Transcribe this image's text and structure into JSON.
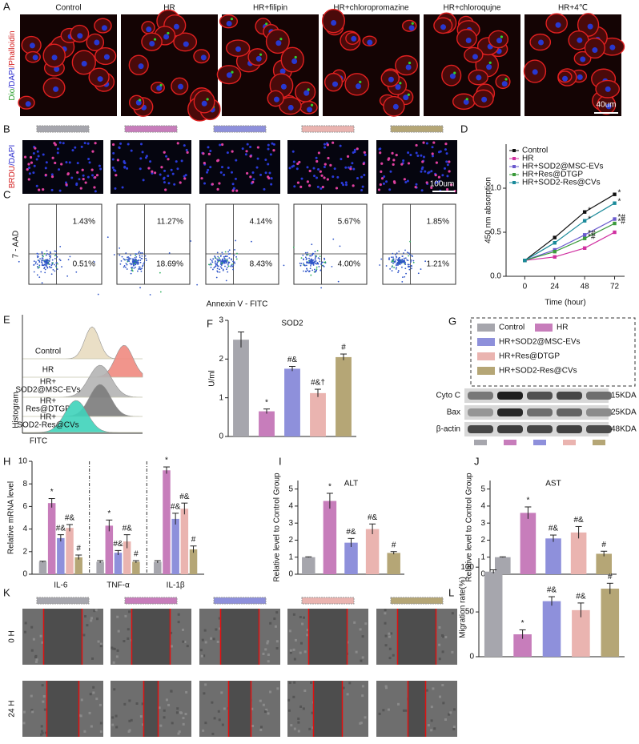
{
  "figure": {
    "A": {
      "label": "A",
      "columns": [
        "Control",
        "HR",
        "HR+filipin",
        "HR+chloropromazine",
        "HR+chloroqujne",
        "HR+4℃"
      ],
      "side_label": [
        {
          "text": "Dio",
          "color": "#2a9d2a"
        },
        {
          "text": "/DAPI",
          "color": "#2a2acd"
        },
        {
          "text": "/Phalloidin",
          "color": "#d42020"
        }
      ],
      "scale_bar": "40um"
    },
    "B": {
      "label": "B",
      "side_label": [
        {
          "text": "BRDU",
          "color": "#d42020"
        },
        {
          "text": "/DAPI",
          "color": "#2a2acd"
        }
      ],
      "scale_bar": "100um"
    },
    "C": {
      "label": "C",
      "quadrants": [
        [
          "1.43%",
          "0.51%"
        ],
        [
          "11.27%",
          "18.69%"
        ],
        [
          "4.14%",
          "8.43%"
        ],
        [
          "5.67%",
          "4.00%"
        ],
        [
          "1.85%",
          "1.21%"
        ]
      ],
      "y_label": "7 - AAD",
      "x_label": "Annexin V - FITC"
    },
    "E": {
      "label": "E",
      "tracks": [
        {
          "name": [
            "Control"
          ],
          "color": "#e8dcc0"
        },
        {
          "name": [
            "HR"
          ],
          "color": "#f08a80"
        },
        {
          "name": [
            "HR+",
            "SOD2@MSC-EVs"
          ],
          "color": "#b4b4b4"
        },
        {
          "name": [
            "HR+",
            "Res@DTGP"
          ],
          "color": "#7c7c7c"
        },
        {
          "name": [
            "HR+",
            "SOD2-Res@CVs"
          ],
          "color": "#3fd3bb"
        }
      ],
      "y_label": "Histogram",
      "x_label": "FITC"
    },
    "G": {
      "label": "G",
      "legend": [
        "Control",
        "HR",
        "HR+SOD2@MSC-EVs",
        "HR+Res@DTGP",
        "HR+SOD2-Res@CVs"
      ],
      "bands": [
        [
          "Cyto C",
          "15KDA"
        ],
        [
          "Bax",
          "25KDA"
        ],
        [
          "β-actin",
          "48KDA"
        ]
      ]
    },
    "K": {
      "label": "K",
      "rows": [
        "0 H",
        "24 H"
      ]
    }
  },
  "group_colors": [
    "#a6a6ad",
    "#c77dbb",
    "#8e90db",
    "#eab4b0",
    "#b5a676"
  ],
  "chart_data": [
    {
      "type": "line",
      "label": "D",
      "y_label": "450 nm absorption",
      "x_label": "Time (hour)",
      "x": [
        0,
        24,
        48,
        72
      ],
      "xlim": [
        -15,
        80
      ],
      "xticks": [
        0,
        24,
        48,
        72
      ],
      "ylim": [
        0,
        1.5
      ],
      "yticks": [
        {
          "value": 0,
          "label": "0.0"
        },
        {
          "value": 0.5,
          "label": "0.5"
        },
        {
          "value": 1,
          "label": "1.0"
        }
      ],
      "legend": "upper left",
      "series": [
        {
          "name": "Control",
          "color": "#111111",
          "values": [
            0.18,
            0.44,
            0.73,
            0.93
          ],
          "annotations": [
            null,
            null,
            "*",
            "*"
          ]
        },
        {
          "name": "HR",
          "color": "#d02fa0",
          "values": [
            0.18,
            0.22,
            0.32,
            0.5
          ],
          "annotations": [
            null,
            null,
            null,
            null
          ]
        },
        {
          "name": "HR+SOD2@MSC-EVs",
          "color": "#6a5acd",
          "values": [
            0.18,
            0.3,
            0.47,
            0.65
          ],
          "annotations": [
            null,
            null,
            "*#",
            "*#"
          ]
        },
        {
          "name": "HR+Res@DTGP",
          "color": "#3a9a3a",
          "values": [
            0.18,
            0.28,
            0.43,
            0.6
          ],
          "annotations": [
            null,
            null,
            "*#",
            "*#"
          ]
        },
        {
          "name": "HR+SOD2-Res@CVs",
          "color": "#1a8a9a",
          "values": [
            0.18,
            0.38,
            0.63,
            0.83
          ],
          "annotations": [
            null,
            null,
            "*",
            "*"
          ]
        }
      ]
    },
    {
      "type": "bar",
      "label": "F",
      "title": "SOD2",
      "y_label": "U/ml",
      "ylim": [
        0,
        3
      ],
      "yticks": [
        0,
        1,
        2,
        3
      ],
      "values": [
        2.5,
        0.65,
        1.75,
        1.12,
        2.05
      ],
      "errors": [
        0.2,
        0.06,
        0.06,
        0.1,
        0.08
      ],
      "colors": [
        "#a6a6ad",
        "#c77dbb",
        "#8e90db",
        "#eab4b0",
        "#b5a676"
      ],
      "annotations": [
        null,
        "*",
        "#&",
        "#&†",
        "#"
      ]
    },
    {
      "type": "grouped-bar",
      "label": "H",
      "y_label": "Relative mRNA level",
      "ylim": [
        0,
        10
      ],
      "yticks": [
        0,
        2,
        4,
        6,
        8,
        10
      ],
      "categories": [
        "IL-6",
        "TNF-α",
        "IL-1β"
      ],
      "series": [
        {
          "color": "#a6a6ad",
          "values": [
            1.1,
            1.1,
            1.1
          ],
          "errors": [
            0.05,
            0.1,
            0.1
          ],
          "annotations": [
            null,
            null,
            null
          ]
        },
        {
          "color": "#c77dbb",
          "values": [
            6.3,
            4.3,
            9.2
          ],
          "errors": [
            0.4,
            0.5,
            0.3
          ],
          "annotations": [
            "*",
            "*",
            "*"
          ]
        },
        {
          "color": "#8e90db",
          "values": [
            3.2,
            1.9,
            4.9
          ],
          "errors": [
            0.3,
            0.2,
            0.5
          ],
          "annotations": [
            "#&",
            "#&",
            "#&"
          ]
        },
        {
          "color": "#eab4b0",
          "values": [
            4.1,
            2.9,
            5.8
          ],
          "errors": [
            0.3,
            0.6,
            0.5
          ],
          "annotations": [
            "#&",
            "#&",
            "#&"
          ]
        },
        {
          "color": "#b5a676",
          "values": [
            1.5,
            1.1,
            2.2
          ],
          "errors": [
            0.2,
            0.1,
            0.3
          ],
          "annotations": [
            "#",
            "#",
            "#"
          ]
        }
      ]
    },
    {
      "type": "bar",
      "label": "I",
      "title": "ALT",
      "y_label": "Relative level to Control Group",
      "ylim": [
        0,
        5.5
      ],
      "yticks": [
        0,
        1,
        2,
        3,
        4,
        5
      ],
      "values": [
        1,
        4.3,
        1.85,
        2.65,
        1.25
      ],
      "errors": [
        0.02,
        0.45,
        0.25,
        0.3,
        0.08
      ],
      "colors": [
        "#a6a6ad",
        "#c77dbb",
        "#8e90db",
        "#eab4b0",
        "#b5a676"
      ],
      "annotations": [
        null,
        "*",
        "#&",
        "#&",
        "#"
      ]
    },
    {
      "type": "bar",
      "label": "J",
      "title": "AST",
      "y_label": "Relative level to Control Group",
      "ylim": [
        0,
        5.5
      ],
      "yticks": [
        0,
        1,
        2,
        3,
        4,
        5
      ],
      "values": [
        1,
        3.6,
        2.1,
        2.45,
        1.2
      ],
      "errors": [
        0.02,
        0.35,
        0.2,
        0.35,
        0.15
      ],
      "colors": [
        "#a6a6ad",
        "#c77dbb",
        "#8e90db",
        "#eab4b0",
        "#b5a676"
      ],
      "annotations": [
        null,
        "*",
        "#&",
        "#&",
        "#"
      ]
    },
    {
      "type": "bar",
      "label": "L",
      "y_label": "Migration rate(%)",
      "ylim": [
        0,
        110
      ],
      "yticks": [
        0,
        50,
        100
      ],
      "values": [
        95,
        25,
        62,
        52,
        76
      ],
      "errors": [
        2,
        5,
        5,
        8,
        6
      ],
      "colors": [
        "#a6a6ad",
        "#c77dbb",
        "#8e90db",
        "#eab4b0",
        "#b5a676"
      ],
      "annotations": [
        null,
        "*",
        "#&",
        "#&",
        "#"
      ]
    }
  ]
}
